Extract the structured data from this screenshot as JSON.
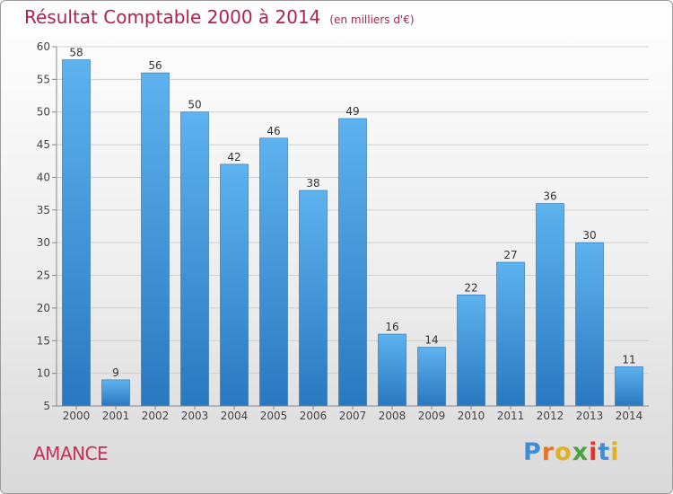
{
  "header": {
    "title": "Résultat Comptable 2000 à 2014",
    "unit": "(en milliers d'€)"
  },
  "commune": "AMANCE",
  "logo": {
    "letters": [
      "P",
      "r",
      "o",
      "x",
      "i",
      "t",
      "i"
    ],
    "colors": [
      "#3b8fd8",
      "#e0762b",
      "#e0b023",
      "#4aa23e",
      "#d83a2e",
      "#3b8fd8",
      "#e0b023"
    ]
  },
  "chart_data": {
    "type": "bar",
    "categories": [
      "2000",
      "2001",
      "2002",
      "2003",
      "2004",
      "2005",
      "2006",
      "2007",
      "2008",
      "2009",
      "2010",
      "2011",
      "2012",
      "2013",
      "2014"
    ],
    "values": [
      58,
      9,
      56,
      50,
      42,
      46,
      38,
      49,
      16,
      14,
      22,
      27,
      36,
      30,
      11
    ],
    "data_labels": [
      "58",
      "9",
      "56",
      "50",
      "42",
      "46",
      "38",
      "49",
      "16",
      "14",
      "22",
      "27",
      "36",
      "30",
      "11"
    ],
    "ylim": [
      5,
      60
    ],
    "yticks": [
      "5",
      "10",
      "15",
      "20",
      "25",
      "30",
      "35",
      "40",
      "45",
      "50",
      "55",
      "60"
    ],
    "grid": true,
    "bar_color": "#4a9de0"
  }
}
